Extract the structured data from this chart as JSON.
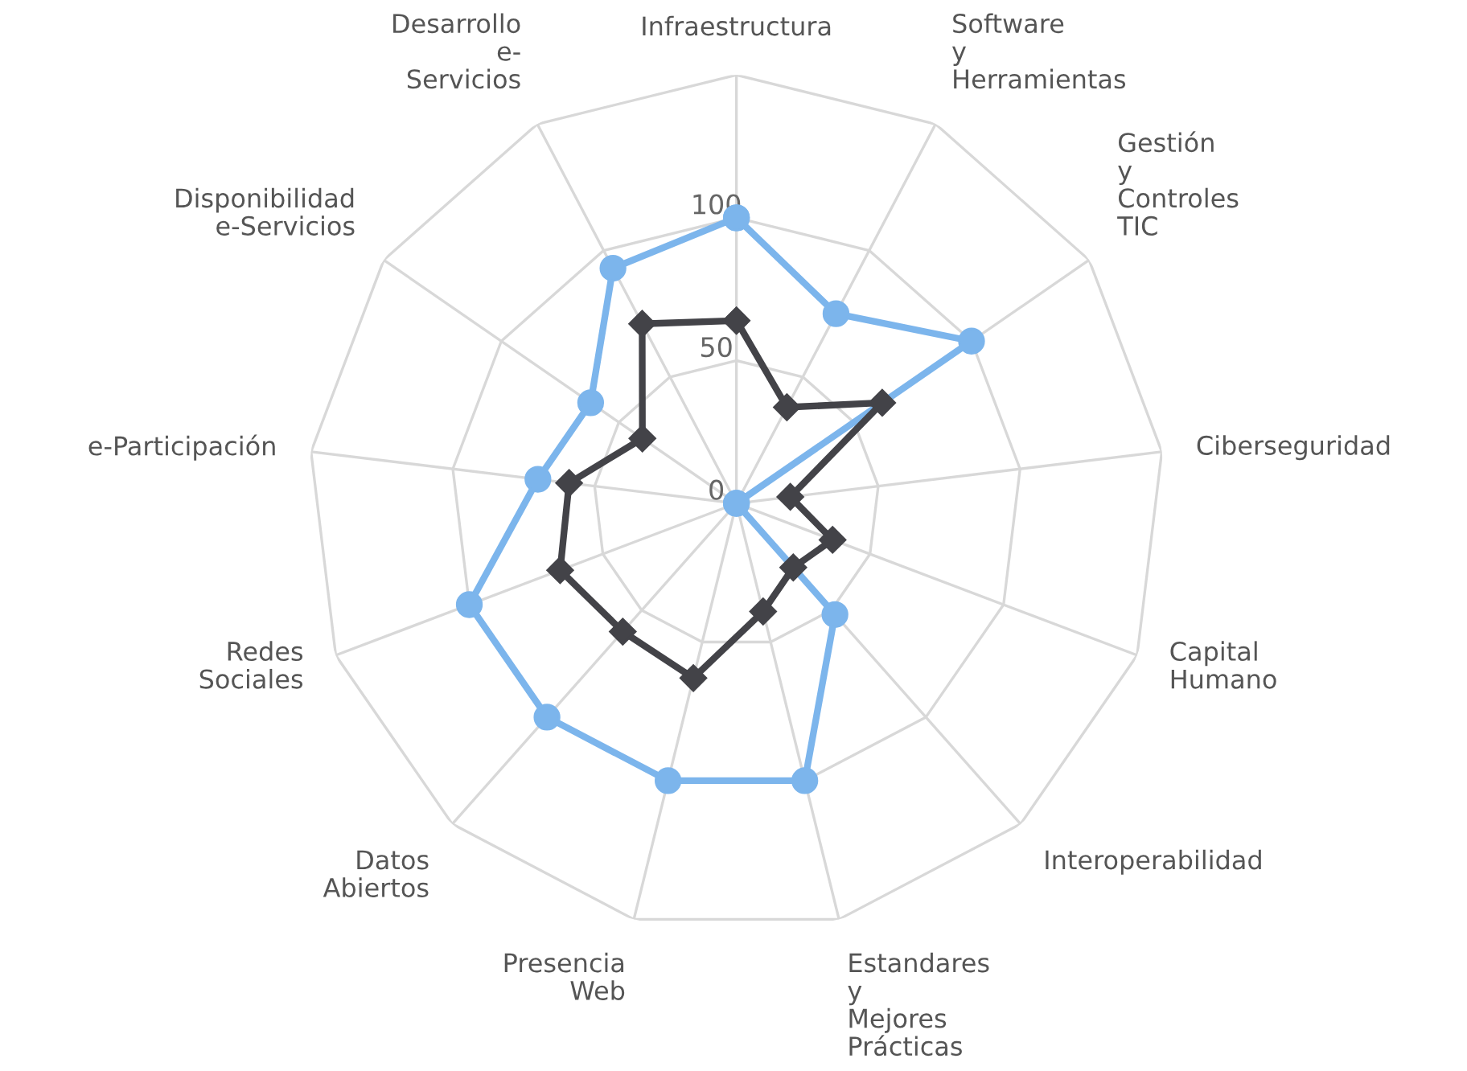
{
  "chart_data": {
    "type": "radar",
    "categories": [
      "Infraestructura",
      "Software\ny\nHerramientas",
      "Gestión\ny\nControles\nTIC",
      "Ciberseguridad",
      "Capital\nHumano",
      "Interoperabilidad",
      "Estandares\ny\nMejores\nPrácticas",
      "Presencia\nWeb",
      "Datos\nAbiertos",
      "Redes\nSociales",
      "e-Participación",
      "Disponibilidad\ne-Servicios",
      "Desarrollo\ne-\nServicios"
    ],
    "series": [
      {
        "color": "#7cb5ec",
        "marker": "circle",
        "values": [
          100,
          75,
          100,
          0,
          0,
          52,
          100,
          100,
          100,
          100,
          70,
          62,
          93
        ]
      },
      {
        "color": "#434348",
        "marker": "diamond",
        "values": [
          64,
          38,
          62,
          19,
          36,
          30,
          39,
          63,
          60,
          66,
          59,
          40,
          71
        ]
      }
    ],
    "ylim": [
      0,
      150
    ],
    "yticks": [
      0,
      50,
      100
    ],
    "grid": true,
    "legend": false
  }
}
